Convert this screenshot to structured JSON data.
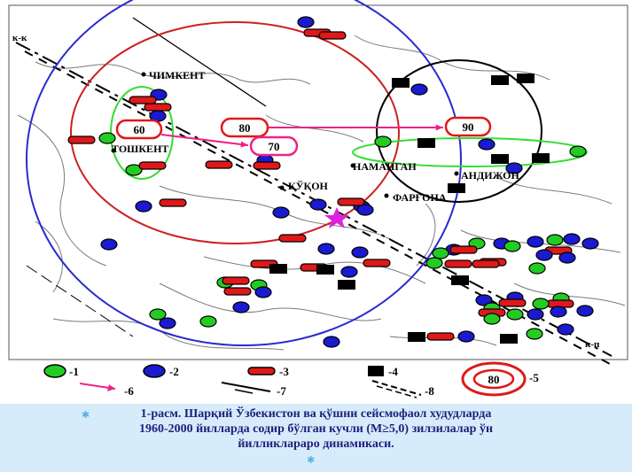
{
  "map": {
    "city_labels": {
      "chimkent": "ЧИМКЕНТ",
      "toshkent": "ТОШКЕНТ",
      "namangan": "НАМАНГАН",
      "andijon": "АНДИЖОН",
      "kukon": "ҚЎҚОН",
      "fargona": "ФАРҒОНА"
    },
    "fault_labels": {
      "kk": "к-к",
      "kp": "к-п"
    },
    "year_markers": {
      "m60": "60",
      "m70": "70",
      "m80": "80",
      "m90": "90"
    },
    "legend": {
      "l1": "-1",
      "l2": "-2",
      "l3": "-3",
      "l4": "-4",
      "l5": "-5",
      "l6": "-6",
      "l7": "-7",
      "l8": "-8",
      "l5_value": "80"
    },
    "colors": {
      "green_marker": "#22cc22",
      "blue_marker": "#1a1ad0",
      "red_marker": "#e01818",
      "black_marker": "#000000",
      "arrow": "#ee2288",
      "blue_circle": "#2a2ad0",
      "red_circle": "#cc2020",
      "green_ellipse": "#33dd33",
      "star": "#dd22dd"
    }
  },
  "caption": {
    "line1": "1-расм. Шарқий Ўзбекистон ва қўшни сейсмофаол худудларда",
    "line2": "1960-2000 йилларда содир бўлган кучли (M≥5,0) зилзилалар ўн",
    "line3": "йилликлараро динамикаси.",
    "bullet_icon": "star-bullet-icon"
  }
}
